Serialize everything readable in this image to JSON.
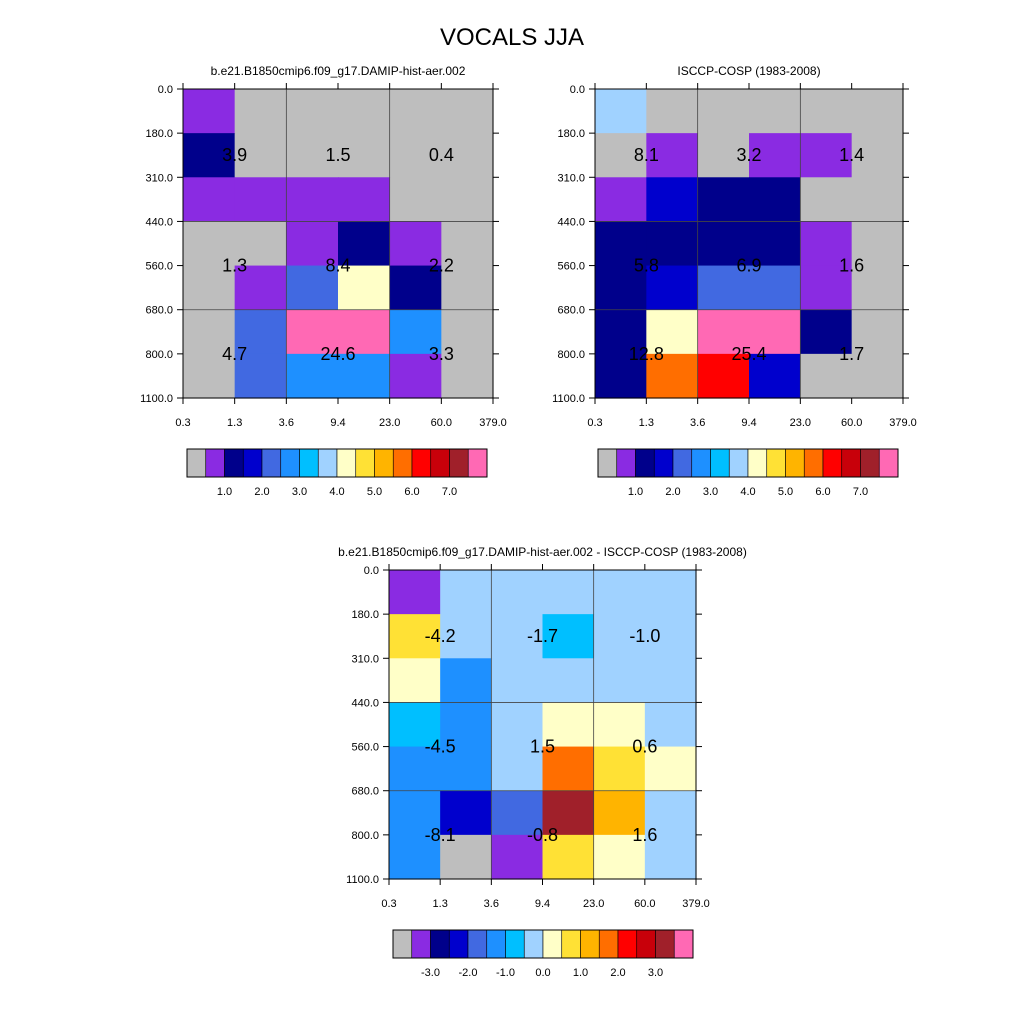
{
  "figure_title": "VOCALS JJA",
  "chart_data": [
    {
      "type": "heatmap",
      "title": "b.e21.B1850cmip6.f09_g17.DAMIP-hist-aer.002",
      "x_ticks": [
        "0.3",
        "1.3",
        "3.6",
        "9.4",
        "23.0",
        "60.0",
        "379.0"
      ],
      "y_ticks": [
        "0.0",
        "180.0",
        "310.0",
        "440.0",
        "560.0",
        "680.0",
        "800.0",
        "1100.0"
      ],
      "cell_colors": [
        [
          "#8a2be2",
          "#bebebe",
          "#bebebe",
          "#bebebe",
          "#bebebe",
          "#bebebe"
        ],
        [
          "#00008b",
          "#bebebe",
          "#bebebe",
          "#bebebe",
          "#bebebe",
          "#bebebe"
        ],
        [
          "#8a2be2",
          "#8a2be2",
          "#8a2be2",
          "#8a2be2",
          "#bebebe",
          "#bebebe"
        ],
        [
          "#bebebe",
          "#bebebe",
          "#8a2be2",
          "#00008b",
          "#8a2be2",
          "#bebebe"
        ],
        [
          "#bebebe",
          "#8a2be2",
          "#4169e1",
          "#ffffc8",
          "#00008b",
          "#bebebe"
        ],
        [
          "#bebebe",
          "#4169e1",
          "#ff69b4",
          "#ff69b4",
          "#1e90ff",
          "#bebebe"
        ],
        [
          "#bebebe",
          "#4169e1",
          "#1e90ff",
          "#1e90ff",
          "#8a2be2",
          "#bebebe"
        ]
      ],
      "group_values": [
        [
          "3.9",
          "1.5",
          "0.4"
        ],
        [
          "1.3",
          "8.4",
          "2.2"
        ],
        [
          "4.7",
          "24.6",
          "3.3"
        ]
      ],
      "colorbar": {
        "colors": [
          "#bebebe",
          "#8a2be2",
          "#00008b",
          "#0000cd",
          "#4169e1",
          "#1e90ff",
          "#00bfff",
          "#a0d2ff",
          "#ffffc8",
          "#ffe135",
          "#ffb400",
          "#ff6e00",
          "#ff0000",
          "#c8000a",
          "#a0202a",
          "#ff69b4"
        ],
        "labels": [
          "1.0",
          "2.0",
          "3.0",
          "4.0",
          "5.0",
          "6.0",
          "7.0"
        ],
        "label_index_start": 2
      }
    },
    {
      "type": "heatmap",
      "title": "ISCCP-COSP (1983-2008)",
      "x_ticks": [
        "0.3",
        "1.3",
        "3.6",
        "9.4",
        "23.0",
        "60.0",
        "379.0"
      ],
      "y_ticks": [
        "0.0",
        "180.0",
        "310.0",
        "440.0",
        "560.0",
        "680.0",
        "800.0",
        "1100.0"
      ],
      "cell_colors": [
        [
          "#a0d2ff",
          "#bebebe",
          "#bebebe",
          "#bebebe",
          "#bebebe",
          "#bebebe"
        ],
        [
          "#bebebe",
          "#8a2be2",
          "#bebebe",
          "#8a2be2",
          "#8a2be2",
          "#bebebe"
        ],
        [
          "#8a2be2",
          "#0000cd",
          "#00008b",
          "#00008b",
          "#bebebe",
          "#bebebe"
        ],
        [
          "#00008b",
          "#00008b",
          "#00008b",
          "#00008b",
          "#8a2be2",
          "#bebebe"
        ],
        [
          "#00008b",
          "#0000cd",
          "#4169e1",
          "#4169e1",
          "#8a2be2",
          "#bebebe"
        ],
        [
          "#00008b",
          "#ffffc8",
          "#ff69b4",
          "#ff69b4",
          "#00008b",
          "#bebebe"
        ],
        [
          "#00008b",
          "#ff6e00",
          "#ff0000",
          "#0000cd",
          "#bebebe",
          "#bebebe"
        ]
      ],
      "group_values": [
        [
          "8.1",
          "3.2",
          "1.4"
        ],
        [
          "5.8",
          "6.9",
          "1.6"
        ],
        [
          "12.8",
          "25.4",
          "1.7"
        ]
      ],
      "colorbar": {
        "colors": [
          "#bebebe",
          "#8a2be2",
          "#00008b",
          "#0000cd",
          "#4169e1",
          "#1e90ff",
          "#00bfff",
          "#a0d2ff",
          "#ffffc8",
          "#ffe135",
          "#ffb400",
          "#ff6e00",
          "#ff0000",
          "#c8000a",
          "#a0202a",
          "#ff69b4"
        ],
        "labels": [
          "1.0",
          "2.0",
          "3.0",
          "4.0",
          "5.0",
          "6.0",
          "7.0"
        ],
        "label_index_start": 2
      }
    },
    {
      "type": "heatmap",
      "title": "b.e21.B1850cmip6.f09_g17.DAMIP-hist-aer.002 - ISCCP-COSP (1983-2008)",
      "x_ticks": [
        "0.3",
        "1.3",
        "3.6",
        "9.4",
        "23.0",
        "60.0",
        "379.0"
      ],
      "y_ticks": [
        "0.0",
        "180.0",
        "310.0",
        "440.0",
        "560.0",
        "680.0",
        "800.0",
        "1100.0"
      ],
      "cell_colors": [
        [
          "#8a2be2",
          "#a0d2ff",
          "#a0d2ff",
          "#a0d2ff",
          "#a0d2ff",
          "#a0d2ff"
        ],
        [
          "#ffe135",
          "#a0d2ff",
          "#a0d2ff",
          "#00bfff",
          "#a0d2ff",
          "#a0d2ff"
        ],
        [
          "#ffffc8",
          "#1e90ff",
          "#a0d2ff",
          "#a0d2ff",
          "#a0d2ff",
          "#a0d2ff"
        ],
        [
          "#00bfff",
          "#1e90ff",
          "#a0d2ff",
          "#ffffc8",
          "#ffffc8",
          "#a0d2ff"
        ],
        [
          "#1e90ff",
          "#1e90ff",
          "#a0d2ff",
          "#ff6e00",
          "#ffe135",
          "#ffffc8"
        ],
        [
          "#1e90ff",
          "#0000cd",
          "#4169e1",
          "#a0202a",
          "#ffb400",
          "#a0d2ff"
        ],
        [
          "#1e90ff",
          "#bebebe",
          "#8a2be2",
          "#ffe135",
          "#ffffc8",
          "#a0d2ff"
        ]
      ],
      "group_values": [
        [
          "-4.2",
          "-1.7",
          "-1.0"
        ],
        [
          "-4.5",
          "1.5",
          "0.6"
        ],
        [
          "-8.1",
          "-0.8",
          "1.6"
        ]
      ],
      "colorbar": {
        "colors": [
          "#bebebe",
          "#8a2be2",
          "#00008b",
          "#0000cd",
          "#4169e1",
          "#1e90ff",
          "#00bfff",
          "#a0d2ff",
          "#ffffc8",
          "#ffe135",
          "#ffb400",
          "#ff6e00",
          "#ff0000",
          "#c8000a",
          "#a0202a",
          "#ff69b4"
        ],
        "labels": [
          "-3.0",
          "-2.0",
          "-1.0",
          "0.0",
          "1.0",
          "2.0",
          "3.0"
        ],
        "label_index_start": 2
      }
    }
  ]
}
